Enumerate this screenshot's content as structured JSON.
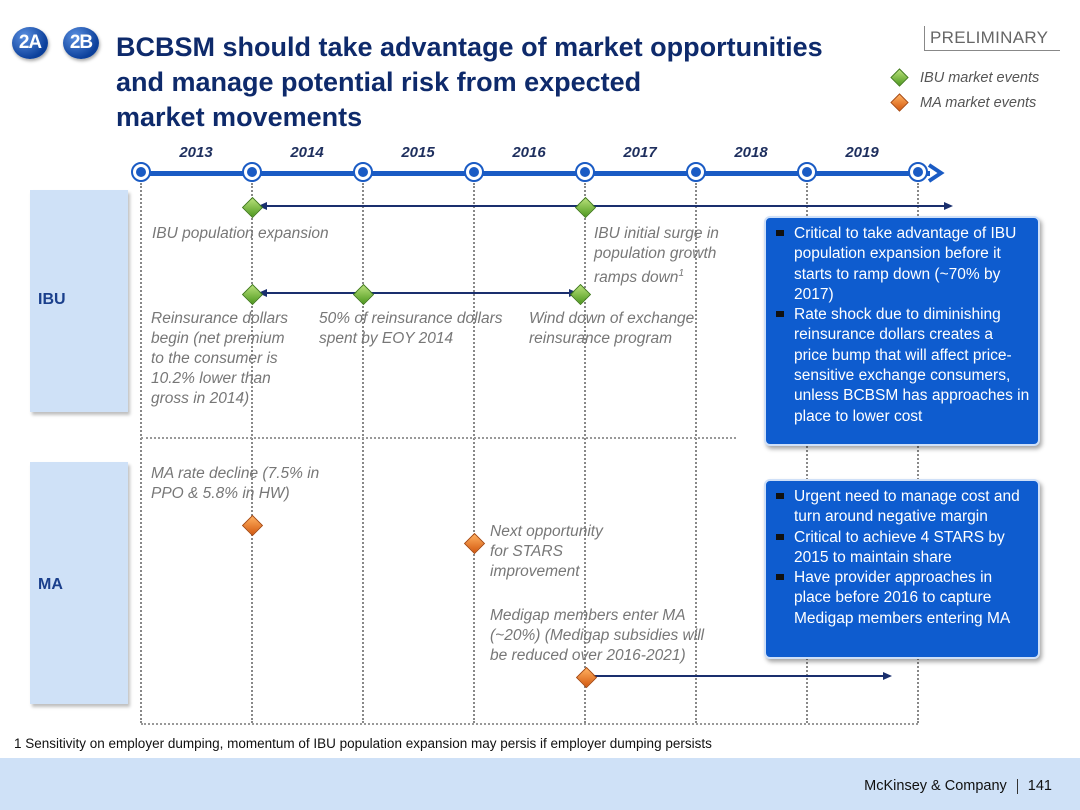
{
  "header": {
    "badges": [
      "2A",
      "2B"
    ],
    "title_lines": [
      "BCBSM should take advantage of market opportunities",
      "and manage potential risk from expected",
      "market movements"
    ],
    "preliminary": "PRELIMINARY"
  },
  "legend": {
    "ibu": "IBU market events",
    "ma": "MA market events",
    "colors": {
      "ibu": "#5aa524",
      "ma": "#e06a14"
    }
  },
  "timeline": {
    "years": [
      "2013",
      "2014",
      "2015",
      "2016",
      "2017",
      "2018",
      "2019"
    ],
    "line_color": "#1a5bc4"
  },
  "rows": {
    "ibu": "IBU",
    "ma": "MA"
  },
  "events": {
    "ibu_population": "IBU population expansion",
    "ibu_surge_lines": [
      "IBU initial surge in",
      "population growth",
      "ramps down"
    ],
    "ibu_surge_sup": "1",
    "reinsurance_begin_lines": [
      "Reinsurance dollars",
      "begin (net premium",
      "to the consumer is",
      "10.2% lower than",
      "gross in 2014)"
    ],
    "reinsurance_50_lines": [
      "50% of reinsurance dollars",
      "spent by EOY 2014"
    ],
    "wind_down_lines": [
      "Wind down of exchange",
      "reinsurance program"
    ],
    "ma_rate_lines": [
      "MA rate decline (7.5% in",
      "PPO & 5.8% in HW)"
    ],
    "stars_lines": [
      "Next opportunity",
      "for STARS",
      "improvement"
    ],
    "medigap_lines": [
      "Medigap members enter MA",
      "(~20%)  (Medigap subsidies will",
      "be reduced over 2016-2021)"
    ]
  },
  "callouts": {
    "ibu": [
      "Critical to take advantage of IBU population expansion before it starts to ramp down (~70% by 2017)",
      "Rate shock due to diminishing reinsurance dollars creates a price bump that will affect price-sensitive exchange consumers, unless BCBSM has approaches in place to lower cost"
    ],
    "ma": [
      "Urgent need to manage cost and turn around negative margin",
      "Critical to achieve 4 STARS by 2015 to maintain share",
      "Have provider approaches in place before 2016 to capture Medigap members entering MA"
    ]
  },
  "footnote": "1 Sensitivity on employer dumping, momentum of IBU population expansion may persis if employer dumping persists",
  "footer": {
    "company": "McKinsey & Company",
    "page": "141"
  }
}
